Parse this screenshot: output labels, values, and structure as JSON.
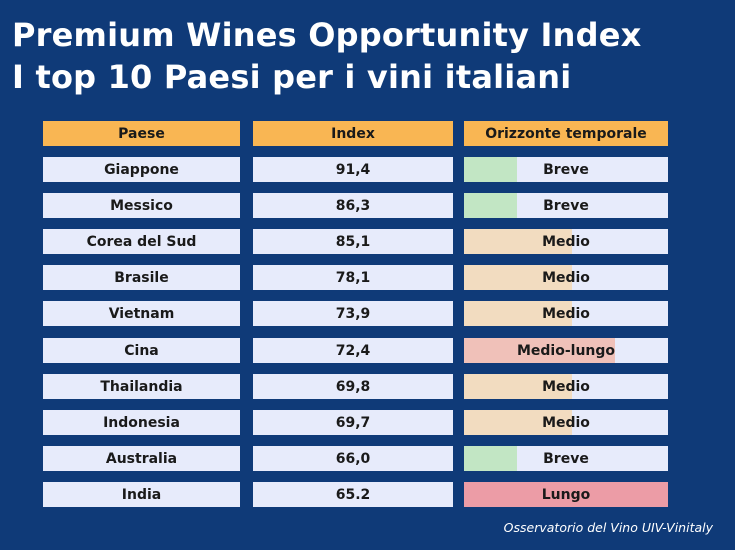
{
  "title_line1": "Premium Wines Opportunity Index",
  "title_line2": "I top 10 Paesi per i vini italiani",
  "footer": "Osservatorio del Vino UIV-Vinitaly",
  "colors": {
    "background": "#0f3a78",
    "header": "#f9b653",
    "row": "#e7ebfb",
    "Breve": "#c2e6c4",
    "Medio": "#f2dcc0",
    "Medio-lungo": "#f0c1b9",
    "Lungo": "#ec9ca6"
  },
  "chart_data": {
    "type": "table",
    "columns": [
      "Paese",
      "Index",
      "Orizzonte temporale"
    ],
    "rows": [
      {
        "country": "Giappone",
        "index": "91,4",
        "horizon": "Breve"
      },
      {
        "country": "Messico",
        "index": "86,3",
        "horizon": "Breve"
      },
      {
        "country": "Corea del Sud",
        "index": "85,1",
        "horizon": "Medio"
      },
      {
        "country": "Brasile",
        "index": "78,1",
        "horizon": "Medio"
      },
      {
        "country": "Vietnam",
        "index": "73,9",
        "horizon": "Medio"
      },
      {
        "country": "Cina",
        "index": "72,4",
        "horizon": "Medio-lungo"
      },
      {
        "country": "Thailandia",
        "index": "69,8",
        "horizon": "Medio"
      },
      {
        "country": "Indonesia",
        "index": "69,7",
        "horizon": "Medio"
      },
      {
        "country": "Australia",
        "index": "66,0",
        "horizon": "Breve"
      },
      {
        "country": "India",
        "index": "65.2",
        "horizon": "Lungo"
      }
    ],
    "horizon_fill": {
      "Breve": 0.26,
      "Medio": 0.53,
      "Medio-lungo": 0.74,
      "Lungo": 1.0
    }
  }
}
